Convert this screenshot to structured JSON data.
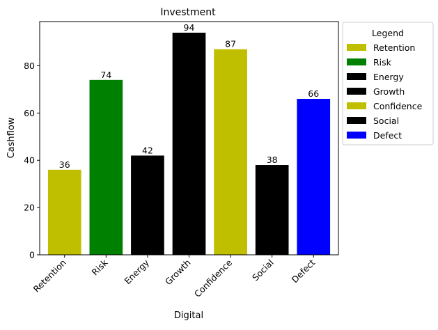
{
  "chart_data": {
    "type": "bar",
    "title": "Investment",
    "xlabel": "Digital",
    "ylabel": "Cashflow",
    "categories": [
      "Retention",
      "Risk",
      "Energy",
      "Growth",
      "Confidence",
      "Social",
      "Defect"
    ],
    "values": [
      36,
      74,
      42,
      94,
      87,
      38,
      66
    ],
    "colors": [
      "#bfbf00",
      "#008000",
      "#000000",
      "#000000",
      "#bfbf00",
      "#000000",
      "#0000ff"
    ],
    "ylim": [
      0,
      98.7
    ],
    "yticks": [
      0,
      20,
      40,
      60,
      80
    ],
    "grid": false,
    "legend": {
      "title": "Legend",
      "placement": "outside-right-top",
      "entries": [
        "Retention",
        "Risk",
        "Energy",
        "Growth",
        "Confidence",
        "Social",
        "Defect"
      ]
    }
  }
}
